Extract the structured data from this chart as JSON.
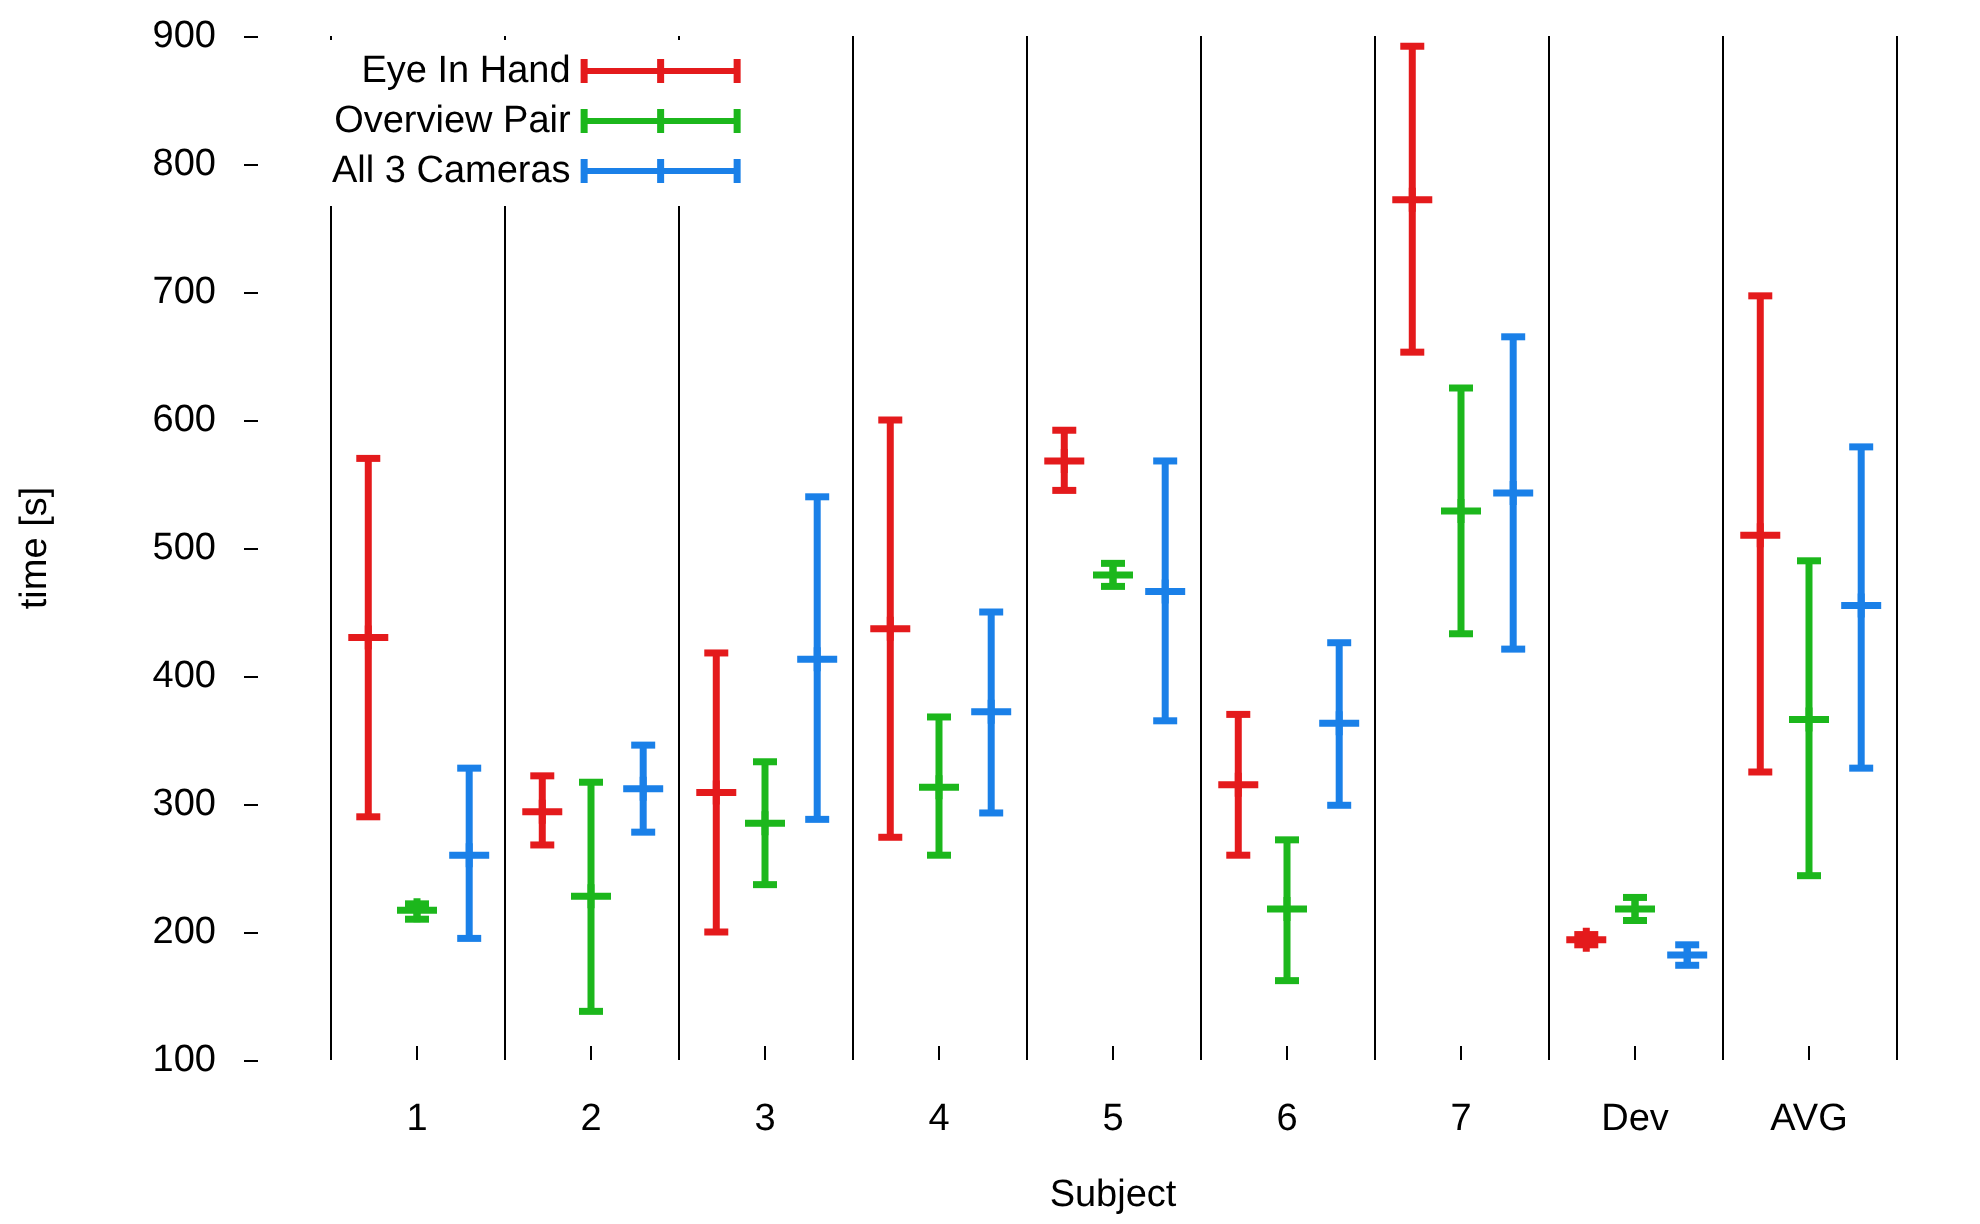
{
  "chart_data": {
    "type": "scatter",
    "xlabel": "Subject",
    "ylabel": "time [s]",
    "xlim": [
      0.5,
      9.5
    ],
    "xticks": [
      1,
      2,
      3,
      4,
      5,
      6,
      7,
      {
        "value": 8,
        "label": "Dev"
      },
      {
        "value": 9,
        "label": "AVG"
      }
    ],
    "ylim": [
      100,
      900
    ],
    "yticks": [
      100,
      200,
      300,
      400,
      500,
      600,
      700,
      800,
      900
    ],
    "legend": "top left",
    "ref_lines": [
      {
        "axis": "x",
        "value": 0.5
      },
      {
        "axis": "x",
        "value": 1.5
      },
      {
        "axis": "x",
        "value": 2.5
      },
      {
        "axis": "x",
        "value": 3.5
      },
      {
        "axis": "x",
        "value": 4.5
      },
      {
        "axis": "x",
        "value": 5.5
      },
      {
        "axis": "x",
        "value": 6.5
      },
      {
        "axis": "x",
        "value": 7.5
      },
      {
        "axis": "x",
        "value": 8.5
      },
      {
        "axis": "x",
        "value": 9.5
      }
    ],
    "series": [
      {
        "name": "Eye In Hand",
        "color": "#e41a1c",
        "x": [
          0.72,
          1.72,
          2.72,
          3.72,
          4.72,
          5.72,
          6.72,
          7.72,
          8.72
        ],
        "values": [
          430,
          294,
          309,
          437,
          568,
          315,
          772,
          194,
          510
        ],
        "errors": [
          [
            290,
            570
          ],
          [
            268,
            322
          ],
          [
            200,
            418
          ],
          [
            274,
            600
          ],
          [
            545,
            592
          ],
          [
            260,
            370
          ],
          [
            653,
            892
          ],
          [
            190,
            198
          ],
          [
            325,
            697
          ]
        ]
      },
      {
        "name": "Overview Pair",
        "color": "#1cb71c",
        "x": [
          1,
          2,
          3,
          4,
          5,
          6,
          7,
          8,
          9
        ],
        "values": [
          217,
          228,
          285,
          313,
          479,
          218,
          529,
          218,
          366
        ],
        "errors": [
          [
            210,
            222
          ],
          [
            138,
            317
          ],
          [
            237,
            333
          ],
          [
            260,
            368
          ],
          [
            470,
            488
          ],
          [
            162,
            272
          ],
          [
            433,
            625
          ],
          [
            209,
            227
          ],
          [
            244,
            490
          ]
        ]
      },
      {
        "name": "All 3 Cameras",
        "color": "#1a80e8",
        "x": [
          1.3,
          2.3,
          3.3,
          4.3,
          5.3,
          6.3,
          7.3,
          8.3,
          9.3
        ],
        "values": [
          260,
          312,
          413,
          372,
          466,
          363,
          543,
          182,
          455
        ],
        "errors": [
          [
            195,
            328
          ],
          [
            278,
            346
          ],
          [
            288,
            540
          ],
          [
            293,
            450
          ],
          [
            365,
            568
          ],
          [
            299,
            426
          ],
          [
            421,
            665
          ],
          [
            174,
            190
          ],
          [
            328,
            579
          ]
        ]
      }
    ]
  }
}
